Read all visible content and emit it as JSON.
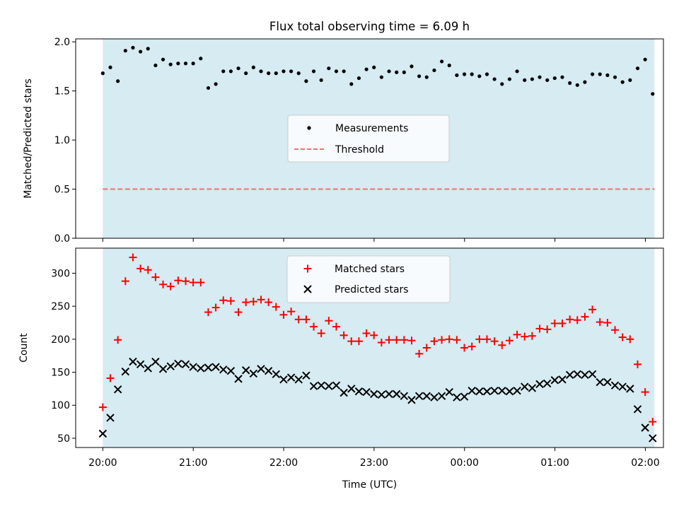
{
  "chart_data": [
    {
      "type": "scatter",
      "title": "Flux total observing time = 6.09 h",
      "xlabel": "",
      "ylabel": "Matched/Predicted stars",
      "xlim_hours": [
        19.7,
        26.2
      ],
      "ylim": [
        0,
        2.03
      ],
      "yticks": [
        0.0,
        0.5,
        1.0,
        1.5,
        2.0
      ],
      "ytick_labels": [
        "0.0",
        "0.5",
        "1.0",
        "1.5",
        "2.0"
      ],
      "shaded_range_hours": [
        20.0,
        26.1
      ],
      "shade_color": "#add8e6",
      "grid": false,
      "legend_position": "center",
      "legend": {
        "measurements_label": "Measurements",
        "threshold_label": "Threshold"
      },
      "series": [
        {
          "name": "Measurements",
          "kind": "points",
          "color": "#000000",
          "x_start_hour": 20.0,
          "x_step_hours": 0.0833,
          "values": [
            1.68,
            1.74,
            1.6,
            1.91,
            1.94,
            1.9,
            1.93,
            1.76,
            1.82,
            1.77,
            1.78,
            1.78,
            1.78,
            1.83,
            1.53,
            1.57,
            1.7,
            1.7,
            1.73,
            1.68,
            1.74,
            1.7,
            1.68,
            1.68,
            1.7,
            1.7,
            1.68,
            1.6,
            1.7,
            1.61,
            1.73,
            1.7,
            1.7,
            1.57,
            1.63,
            1.72,
            1.74,
            1.64,
            1.7,
            1.69,
            1.69,
            1.75,
            1.65,
            1.64,
            1.71,
            1.8,
            1.76,
            1.66,
            1.67,
            1.67,
            1.65,
            1.67,
            1.62,
            1.57,
            1.62,
            1.7,
            1.61,
            1.62,
            1.64,
            1.61,
            1.63,
            1.64,
            1.58,
            1.56,
            1.59,
            1.67,
            1.67,
            1.66,
            1.64,
            1.59,
            1.61,
            1.73,
            1.82,
            1.47
          ]
        },
        {
          "name": "Threshold",
          "kind": "dashed-line",
          "color": "#f07070",
          "value": 0.5,
          "x_range_hours": [
            20.0,
            26.1
          ]
        }
      ]
    },
    {
      "type": "scatter",
      "title": "",
      "xlabel": "Time (UTC)",
      "ylabel": "Count",
      "xlim_hours": [
        19.7,
        26.2
      ],
      "ylim": [
        36,
        338
      ],
      "yticks": [
        50,
        100,
        150,
        200,
        250,
        300
      ],
      "ytick_labels": [
        "50",
        "100",
        "150",
        "200",
        "250",
        "300"
      ],
      "xticks_hours": [
        20,
        21,
        22,
        23,
        24,
        25,
        26
      ],
      "xtick_labels": [
        "20:00",
        "21:00",
        "22:00",
        "23:00",
        "00:00",
        "01:00",
        "02:00"
      ],
      "shaded_range_hours": [
        20.0,
        26.1
      ],
      "shade_color": "#add8e6",
      "grid": false,
      "legend_position": "top-center",
      "legend": {
        "matched_label": "Matched stars",
        "predicted_label": "Predicted stars"
      },
      "series": [
        {
          "name": "Matched stars",
          "marker": "plus",
          "color": "#ff0000",
          "x_start_hour": 20.0,
          "x_step_hours": 0.0833,
          "values": [
            97,
            141,
            199,
            288,
            324,
            307,
            305,
            294,
            283,
            280,
            289,
            288,
            286,
            286,
            241,
            248,
            259,
            258,
            241,
            256,
            257,
            260,
            256,
            249,
            237,
            242,
            230,
            230,
            219,
            209,
            228,
            219,
            206,
            197,
            197,
            209,
            206,
            195,
            199,
            199,
            199,
            198,
            178,
            187,
            197,
            199,
            200,
            199,
            187,
            189,
            200,
            200,
            197,
            191,
            198,
            207,
            204,
            205,
            216,
            215,
            224,
            224,
            230,
            229,
            234,
            245,
            226,
            225,
            214,
            203,
            200,
            162,
            120,
            75
          ]
        },
        {
          "name": "Predicted stars",
          "marker": "x",
          "color": "#000000",
          "x_start_hour": 20.0,
          "x_step_hours": 0.0833,
          "values": [
            57,
            81,
            124,
            151,
            166,
            162,
            156,
            166,
            155,
            159,
            163,
            162,
            158,
            156,
            157,
            158,
            154,
            152,
            140,
            153,
            148,
            155,
            152,
            147,
            139,
            142,
            139,
            145,
            129,
            130,
            129,
            130,
            119,
            125,
            121,
            120,
            117,
            116,
            117,
            117,
            114,
            108,
            114,
            114,
            112,
            114,
            120,
            112,
            113,
            122,
            121,
            121,
            122,
            122,
            121,
            122,
            128,
            126,
            132,
            133,
            138,
            139,
            146,
            147,
            146,
            147,
            135,
            135,
            130,
            128,
            125,
            94,
            66,
            50
          ]
        }
      ]
    }
  ]
}
